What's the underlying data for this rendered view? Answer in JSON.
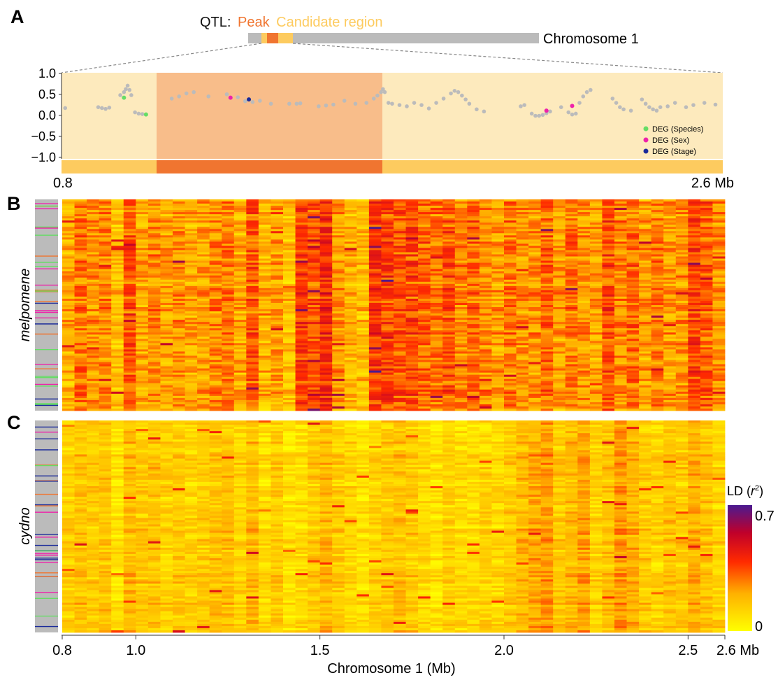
{
  "labels": {
    "panel_a": "A",
    "panel_b": "B",
    "panel_c": "C",
    "qtl_prefix": "QTL:",
    "qtl_peak": "Peak",
    "qtl_candidate": "Candidate region",
    "chromosome": "Chromosome 1",
    "range_start": "0.8",
    "range_end": "2.6 Mb",
    "melpomene": "melpomene",
    "cydno": "cydno",
    "xlabel": "Chromosome 1 (Mb)",
    "colorbar_title": "LD (",
    "colorbar_r": "r",
    "colorbar_sup": "2",
    "colorbar_close": ")",
    "colorbar_max": "0.7",
    "colorbar_min": "0"
  },
  "colors": {
    "peak": "#F07530",
    "candidate": "#FDCB5F",
    "chromosome_bar": "#BBBBBB",
    "track_bg": "#FDEABD",
    "track_peak_bg": "#F8BD8A",
    "point_gray": "#BBBBBB",
    "deg_species": "#66DD66",
    "deg_sex": "#EE22AA",
    "deg_stage": "#1A2A9A"
  },
  "chart_data": [
    {
      "type": "scatter",
      "panel": "A",
      "x_range": [
        0.8,
        2.6
      ],
      "ylim": [
        -1.0,
        1.0
      ],
      "yticks": [
        "1.0",
        "0.5",
        "0.0",
        "−0.5",
        "−1.0"
      ],
      "candidate_region": [
        0.8,
        2.6
      ],
      "peak_region": [
        1.06,
        1.67
      ],
      "legend": [
        "DEG (Species)",
        "DEG (Sex)",
        "DEG (Stage)"
      ],
      "legend_position": "bottom-right",
      "points": [
        [
          0.81,
          0.18
        ],
        [
          0.9,
          0.2
        ],
        [
          0.91,
          0.18
        ],
        [
          0.92,
          0.16
        ],
        [
          0.93,
          0.19
        ],
        [
          0.96,
          0.48
        ],
        [
          0.97,
          0.55
        ],
        [
          0.975,
          0.62
        ],
        [
          0.98,
          0.7
        ],
        [
          0.985,
          0.6
        ],
        [
          0.99,
          0.48
        ],
        [
          1.0,
          0.08
        ],
        [
          1.01,
          0.05
        ],
        [
          1.02,
          0.04
        ],
        [
          1.1,
          0.4
        ],
        [
          1.12,
          0.45
        ],
        [
          1.14,
          0.52
        ],
        [
          1.16,
          0.55
        ],
        [
          1.2,
          0.45
        ],
        [
          1.25,
          0.5
        ],
        [
          1.28,
          0.43
        ],
        [
          1.3,
          0.34
        ],
        [
          1.32,
          0.32
        ],
        [
          1.34,
          0.35
        ],
        [
          1.37,
          0.28
        ],
        [
          1.42,
          0.28
        ],
        [
          1.44,
          0.28
        ],
        [
          1.45,
          0.29
        ],
        [
          1.5,
          0.22
        ],
        [
          1.52,
          0.24
        ],
        [
          1.54,
          0.26
        ],
        [
          1.57,
          0.35
        ],
        [
          1.6,
          0.28
        ],
        [
          1.63,
          0.3
        ],
        [
          1.65,
          0.4
        ],
        [
          1.66,
          0.47
        ],
        [
          1.67,
          0.55
        ],
        [
          1.675,
          0.62
        ],
        [
          1.68,
          0.55
        ],
        [
          1.69,
          0.3
        ],
        [
          1.7,
          0.28
        ],
        [
          1.72,
          0.25
        ],
        [
          1.74,
          0.22
        ],
        [
          1.76,
          0.3
        ],
        [
          1.78,
          0.25
        ],
        [
          1.8,
          0.17
        ],
        [
          1.82,
          0.3
        ],
        [
          1.84,
          0.4
        ],
        [
          1.86,
          0.52
        ],
        [
          1.87,
          0.58
        ],
        [
          1.88,
          0.55
        ],
        [
          1.89,
          0.47
        ],
        [
          1.9,
          0.38
        ],
        [
          1.91,
          0.28
        ],
        [
          1.93,
          0.15
        ],
        [
          1.95,
          0.1
        ],
        [
          2.05,
          0.22
        ],
        [
          2.06,
          0.25
        ],
        [
          2.08,
          0.05
        ],
        [
          2.09,
          0.0
        ],
        [
          2.1,
          0.0
        ],
        [
          2.11,
          0.02
        ],
        [
          2.12,
          0.06
        ],
        [
          2.13,
          0.1
        ],
        [
          2.16,
          0.2
        ],
        [
          2.18,
          0.08
        ],
        [
          2.19,
          0.03
        ],
        [
          2.2,
          0.05
        ],
        [
          2.21,
          0.3
        ],
        [
          2.22,
          0.45
        ],
        [
          2.23,
          0.55
        ],
        [
          2.24,
          0.6
        ],
        [
          2.3,
          0.4
        ],
        [
          2.31,
          0.3
        ],
        [
          2.32,
          0.2
        ],
        [
          2.33,
          0.15
        ],
        [
          2.35,
          0.12
        ],
        [
          2.38,
          0.38
        ],
        [
          2.39,
          0.28
        ],
        [
          2.4,
          0.2
        ],
        [
          2.41,
          0.15
        ],
        [
          2.42,
          0.12
        ],
        [
          2.43,
          0.2
        ],
        [
          2.45,
          0.22
        ],
        [
          2.47,
          0.3
        ],
        [
          2.5,
          0.2
        ],
        [
          2.52,
          0.25
        ],
        [
          2.55,
          0.3
        ],
        [
          2.58,
          0.26
        ]
      ],
      "deg_species": [
        [
          0.97,
          0.42
        ],
        [
          1.03,
          0.03
        ]
      ],
      "deg_sex": [
        [
          1.26,
          0.42
        ],
        [
          2.12,
          0.12
        ],
        [
          2.19,
          0.23
        ]
      ],
      "deg_stage": [
        [
          1.31,
          0.38
        ]
      ]
    },
    {
      "type": "heatmap",
      "panel": "B",
      "population": "melpomene",
      "xticks": [
        "0.8",
        "1.0",
        "1.5",
        "2.0",
        "2.5",
        "2.6 Mb"
      ],
      "x_range": [
        0.8,
        2.6
      ],
      "colorbar_range": [
        0,
        0.7
      ],
      "column_mean_ld": [
        0.2,
        0.28,
        0.24,
        0.26,
        0.16,
        0.33,
        0.2,
        0.26,
        0.22,
        0.24,
        0.2,
        0.22,
        0.26,
        0.28,
        0.2,
        0.33,
        0.18,
        0.22,
        0.16,
        0.37,
        0.33,
        0.4,
        0.24,
        0.18,
        0.16,
        0.38,
        0.36,
        0.33,
        0.34,
        0.3,
        0.28,
        0.33,
        0.26,
        0.3,
        0.26,
        0.22,
        0.28,
        0.24,
        0.24,
        0.3,
        0.22,
        0.28,
        0.24,
        0.22,
        0.34,
        0.26,
        0.3,
        0.22,
        0.28,
        0.22,
        0.24,
        0.36,
        0.32,
        0.24
      ]
    },
    {
      "type": "heatmap",
      "panel": "C",
      "population": "cydno",
      "xticks": [
        "0.8",
        "1.0",
        "1.5",
        "2.0",
        "2.5",
        "2.6 Mb"
      ],
      "x_range": [
        0.8,
        2.6
      ],
      "colorbar_range": [
        0,
        0.7
      ],
      "column_mean_ld": [
        0.12,
        0.16,
        0.14,
        0.16,
        0.08,
        0.18,
        0.14,
        0.16,
        0.12,
        0.14,
        0.12,
        0.14,
        0.16,
        0.16,
        0.12,
        0.18,
        0.1,
        0.14,
        0.08,
        0.1,
        0.14,
        0.18,
        0.14,
        0.12,
        0.08,
        0.12,
        0.14,
        0.16,
        0.14,
        0.1,
        0.08,
        0.12,
        0.1,
        0.1,
        0.12,
        0.1,
        0.14,
        0.18,
        0.22,
        0.24,
        0.14,
        0.18,
        0.22,
        0.12,
        0.16,
        0.24,
        0.2,
        0.14,
        0.12,
        0.16,
        0.14,
        0.2,
        0.16,
        0.12
      ]
    }
  ]
}
